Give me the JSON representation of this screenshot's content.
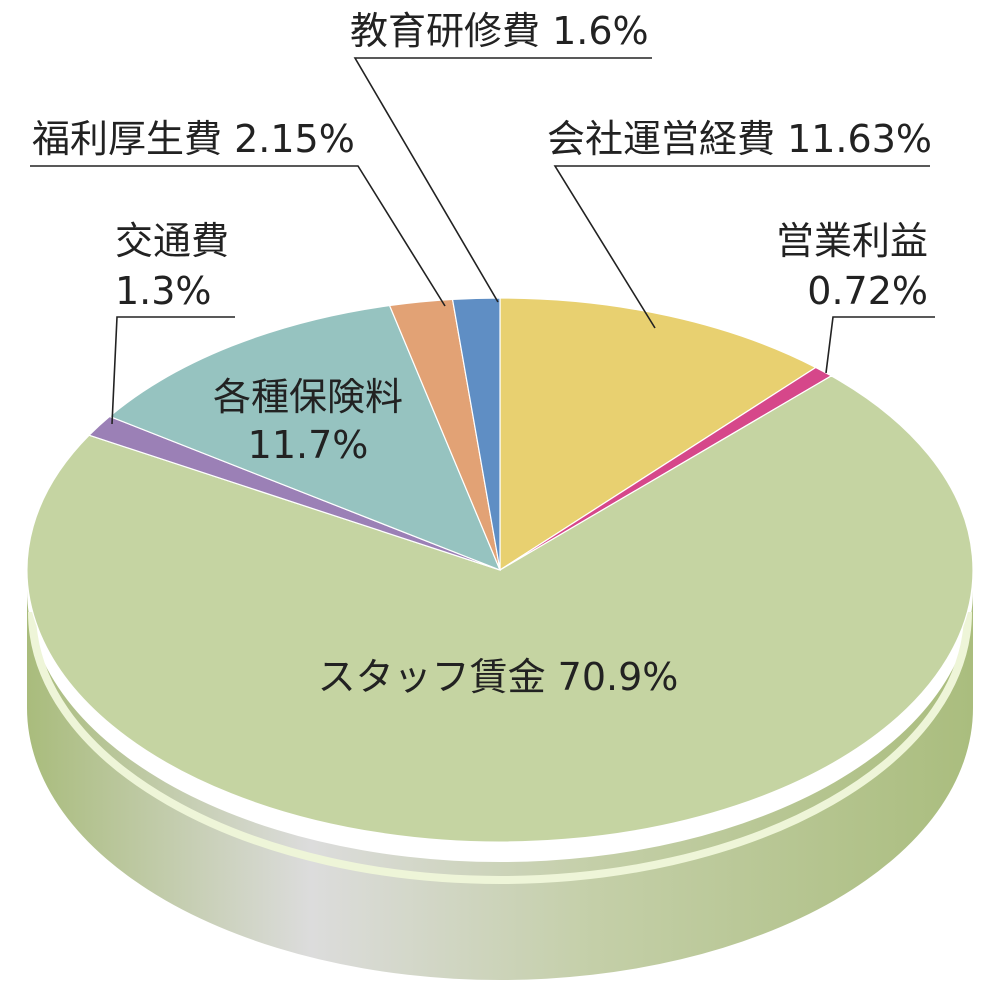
{
  "chart_data": {
    "type": "pie",
    "title": "",
    "style": "3d",
    "slices": [
      {
        "name": "会社運営経費",
        "label": "会社運営経費 11.63%",
        "value": 11.63,
        "color": "#e8d070"
      },
      {
        "name": "営業利益",
        "label_lines": [
          "営業利益",
          "0.72%"
        ],
        "value": 0.72,
        "color": "#d6478a"
      },
      {
        "name": "スタッフ賃金",
        "label": "スタッフ賃金 70.9%",
        "value": 70.9,
        "color": "#c5d4a2"
      },
      {
        "name": "交通費",
        "label_lines": [
          "交通費",
          "1.3%"
        ],
        "value": 1.3,
        "color": "#9b80b6"
      },
      {
        "name": "各種保険料",
        "label_lines": [
          "各種保険料",
          "11.7%"
        ],
        "value": 11.7,
        "color": "#96c3c0"
      },
      {
        "name": "福利厚生費",
        "label": "福利厚生費 2.15%",
        "value": 2.15,
        "color": "#e2a275"
      },
      {
        "name": "教育研修費",
        "label": "教育研修費 1.6%",
        "value": 1.6,
        "color": "#5f8ec4"
      }
    ],
    "side_color": "#aec182"
  }
}
